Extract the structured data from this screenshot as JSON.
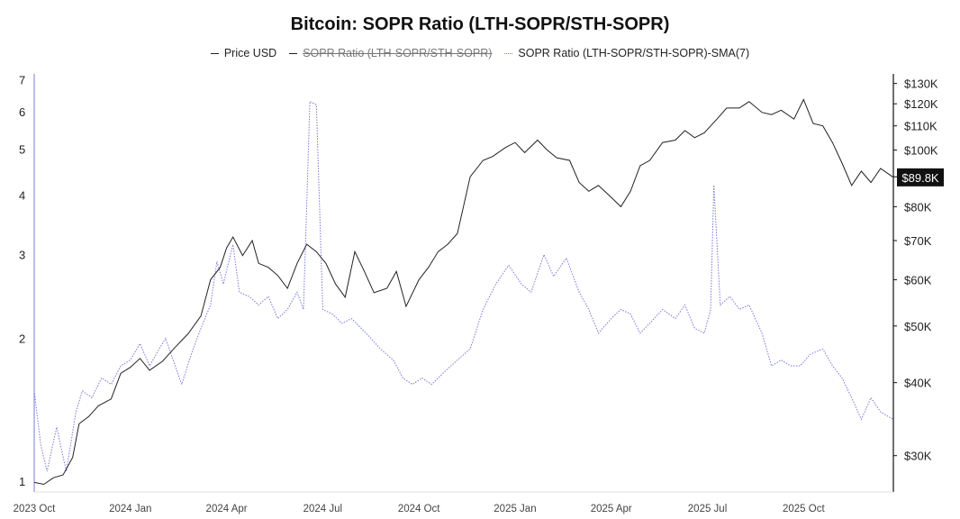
{
  "chart_data": {
    "type": "line",
    "title": "Bitcoin: SOPR Ratio (LTH-SOPR/STH-SOPR)",
    "legend": [
      {
        "name": "Price USD",
        "style": "solid",
        "color": "#222222",
        "hidden": false
      },
      {
        "name": "SOPR Ratio (LTH-SOPR/STH-SOPR)",
        "style": "solid",
        "color": "#222222",
        "hidden": true
      },
      {
        "name": "SOPR Ratio (LTH-SOPR/STH-SOPR)-SMA(7)",
        "style": "dotted",
        "color": "#7a78d8",
        "hidden": false
      }
    ],
    "x_ticks": [
      "2023 Oct",
      "2024 Jan",
      "2024 Apr",
      "2024 Jul",
      "2024 Oct",
      "2025 Jan",
      "2025 Apr",
      "2025 Jul",
      "2025 Oct"
    ],
    "x_tick_months": [
      0,
      3,
      6,
      9,
      12,
      15,
      18,
      21,
      24
    ],
    "x_range_months": [
      0,
      26.8
    ],
    "left_axis": {
      "scale": "log",
      "range": [
        0.95,
        7.2
      ],
      "ticks": [
        "1",
        "2",
        "3",
        "4",
        "5",
        "6",
        "7"
      ],
      "tick_values": [
        1,
        2,
        3,
        4,
        5,
        6,
        7
      ]
    },
    "right_axis": {
      "scale": "log",
      "range": [
        26000,
        135000
      ],
      "ticks": [
        "$30K",
        "$40K",
        "$50K",
        "$60K",
        "$70K",
        "$80K",
        "$90K",
        "$100K",
        "$110K",
        "$120K",
        "$130K"
      ],
      "tick_values": [
        30000,
        40000,
        50000,
        60000,
        70000,
        80000,
        90000,
        100000,
        110000,
        120000,
        130000
      ]
    },
    "current_price_label": "$89.8K",
    "current_price_value": 89800,
    "series": [
      {
        "name": "Price USD",
        "axis": "right",
        "points": [
          [
            0,
            27000
          ],
          [
            0.3,
            26800
          ],
          [
            0.6,
            27500
          ],
          [
            0.9,
            27800
          ],
          [
            1.2,
            29800
          ],
          [
            1.4,
            34000
          ],
          [
            1.7,
            35000
          ],
          [
            2.0,
            36500
          ],
          [
            2.4,
            37500
          ],
          [
            2.7,
            41500
          ],
          [
            3.0,
            42500
          ],
          [
            3.3,
            44000
          ],
          [
            3.6,
            42000
          ],
          [
            4.0,
            43500
          ],
          [
            4.4,
            46000
          ],
          [
            4.8,
            48500
          ],
          [
            5.2,
            52000
          ],
          [
            5.5,
            60000
          ],
          [
            5.8,
            63000
          ],
          [
            6.0,
            68000
          ],
          [
            6.2,
            71000
          ],
          [
            6.5,
            66000
          ],
          [
            6.8,
            70000
          ],
          [
            7.0,
            64000
          ],
          [
            7.3,
            63000
          ],
          [
            7.6,
            61000
          ],
          [
            7.9,
            58000
          ],
          [
            8.2,
            64000
          ],
          [
            8.5,
            69000
          ],
          [
            8.8,
            67000
          ],
          [
            9.1,
            64000
          ],
          [
            9.4,
            59000
          ],
          [
            9.7,
            56000
          ],
          [
            10.0,
            67000
          ],
          [
            10.3,
            62000
          ],
          [
            10.6,
            57000
          ],
          [
            11.0,
            58000
          ],
          [
            11.3,
            62000
          ],
          [
            11.6,
            54000
          ],
          [
            12.0,
            60000
          ],
          [
            12.3,
            63000
          ],
          [
            12.6,
            67000
          ],
          [
            12.9,
            69000
          ],
          [
            13.2,
            72000
          ],
          [
            13.6,
            90000
          ],
          [
            14.0,
            96000
          ],
          [
            14.3,
            97500
          ],
          [
            14.7,
            101000
          ],
          [
            15.0,
            103000
          ],
          [
            15.3,
            99000
          ],
          [
            15.7,
            104000
          ],
          [
            16.0,
            100000
          ],
          [
            16.3,
            97000
          ],
          [
            16.7,
            96000
          ],
          [
            17.0,
            88000
          ],
          [
            17.3,
            85000
          ],
          [
            17.6,
            87000
          ],
          [
            18.0,
            83000
          ],
          [
            18.3,
            80000
          ],
          [
            18.6,
            85000
          ],
          [
            18.9,
            94000
          ],
          [
            19.2,
            96000
          ],
          [
            19.6,
            103000
          ],
          [
            20.0,
            104000
          ],
          [
            20.3,
            108000
          ],
          [
            20.6,
            105000
          ],
          [
            20.9,
            107000
          ],
          [
            21.3,
            113000
          ],
          [
            21.6,
            118000
          ],
          [
            22.0,
            118000
          ],
          [
            22.3,
            121000
          ],
          [
            22.7,
            116000
          ],
          [
            23.0,
            115000
          ],
          [
            23.3,
            117000
          ],
          [
            23.7,
            113000
          ],
          [
            24.0,
            122000
          ],
          [
            24.3,
            111000
          ],
          [
            24.6,
            110000
          ],
          [
            24.9,
            103000
          ],
          [
            25.2,
            95000
          ],
          [
            25.5,
            87000
          ],
          [
            25.8,
            92000
          ],
          [
            26.1,
            88000
          ],
          [
            26.4,
            93000
          ],
          [
            26.8,
            89800
          ]
        ]
      },
      {
        "name": "SOPR Ratio (LTH-SOPR/STH-SOPR)-SMA(7)",
        "axis": "left",
        "points": [
          [
            0,
            1.55
          ],
          [
            0.2,
            1.2
          ],
          [
            0.4,
            1.05
          ],
          [
            0.7,
            1.3
          ],
          [
            1.0,
            1.05
          ],
          [
            1.3,
            1.4
          ],
          [
            1.5,
            1.55
          ],
          [
            1.8,
            1.5
          ],
          [
            2.1,
            1.65
          ],
          [
            2.4,
            1.6
          ],
          [
            2.7,
            1.75
          ],
          [
            3.0,
            1.8
          ],
          [
            3.3,
            1.95
          ],
          [
            3.6,
            1.75
          ],
          [
            3.9,
            1.9
          ],
          [
            4.1,
            2.0
          ],
          [
            4.4,
            1.75
          ],
          [
            4.6,
            1.6
          ],
          [
            4.9,
            1.85
          ],
          [
            5.2,
            2.1
          ],
          [
            5.5,
            2.35
          ],
          [
            5.7,
            2.9
          ],
          [
            5.9,
            2.6
          ],
          [
            6.2,
            3.15
          ],
          [
            6.4,
            2.5
          ],
          [
            6.7,
            2.45
          ],
          [
            7.0,
            2.35
          ],
          [
            7.3,
            2.45
          ],
          [
            7.6,
            2.2
          ],
          [
            7.9,
            2.3
          ],
          [
            8.2,
            2.5
          ],
          [
            8.4,
            2.3
          ],
          [
            8.6,
            6.3
          ],
          [
            8.8,
            6.2
          ],
          [
            9.0,
            2.3
          ],
          [
            9.3,
            2.25
          ],
          [
            9.6,
            2.15
          ],
          [
            9.9,
            2.2
          ],
          [
            10.2,
            2.1
          ],
          [
            10.5,
            2.0
          ],
          [
            10.8,
            1.9
          ],
          [
            11.2,
            1.8
          ],
          [
            11.5,
            1.65
          ],
          [
            11.8,
            1.6
          ],
          [
            12.1,
            1.65
          ],
          [
            12.4,
            1.6
          ],
          [
            12.8,
            1.7
          ],
          [
            13.2,
            1.8
          ],
          [
            13.6,
            1.9
          ],
          [
            14.0,
            2.3
          ],
          [
            14.4,
            2.6
          ],
          [
            14.8,
            2.85
          ],
          [
            15.2,
            2.6
          ],
          [
            15.5,
            2.5
          ],
          [
            15.9,
            3.0
          ],
          [
            16.2,
            2.7
          ],
          [
            16.6,
            2.95
          ],
          [
            17.0,
            2.5
          ],
          [
            17.3,
            2.3
          ],
          [
            17.6,
            2.05
          ],
          [
            18.0,
            2.2
          ],
          [
            18.3,
            2.3
          ],
          [
            18.6,
            2.25
          ],
          [
            18.9,
            2.05
          ],
          [
            19.2,
            2.15
          ],
          [
            19.6,
            2.3
          ],
          [
            20.0,
            2.2
          ],
          [
            20.3,
            2.35
          ],
          [
            20.6,
            2.1
          ],
          [
            20.9,
            2.05
          ],
          [
            21.1,
            2.3
          ],
          [
            21.2,
            4.2
          ],
          [
            21.4,
            2.35
          ],
          [
            21.7,
            2.45
          ],
          [
            22.0,
            2.3
          ],
          [
            22.3,
            2.35
          ],
          [
            22.7,
            2.05
          ],
          [
            23.0,
            1.75
          ],
          [
            23.3,
            1.8
          ],
          [
            23.6,
            1.75
          ],
          [
            23.9,
            1.75
          ],
          [
            24.2,
            1.85
          ],
          [
            24.6,
            1.9
          ],
          [
            24.9,
            1.75
          ],
          [
            25.2,
            1.65
          ],
          [
            25.5,
            1.5
          ],
          [
            25.8,
            1.35
          ],
          [
            26.1,
            1.5
          ],
          [
            26.4,
            1.4
          ],
          [
            26.8,
            1.35
          ]
        ]
      }
    ]
  }
}
